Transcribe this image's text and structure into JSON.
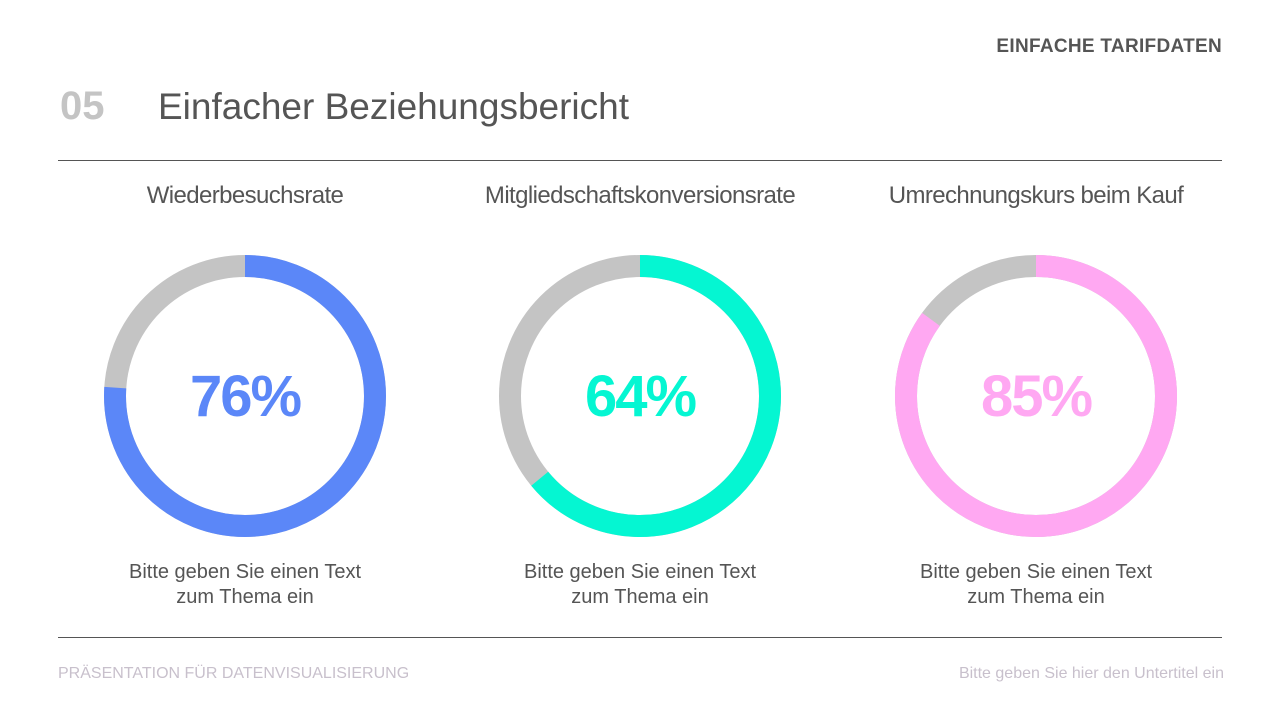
{
  "header": {
    "section_label": "EINFACHE TARIFDATEN",
    "number": "05",
    "title": "Einfacher Beziehungsbericht"
  },
  "chart_data": [
    {
      "type": "pie",
      "title": "Wiederbesuchsrate",
      "value": 76,
      "label": "76%",
      "color": "#5b87f8",
      "track_color": "#c4c4c4",
      "description": [
        "Bitte geben Sie einen Text",
        "zum Thema ein"
      ]
    },
    {
      "type": "pie",
      "title": "Mitgliedschaftskonversionsrate",
      "value": 64,
      "label": "64%",
      "color": "#05f6d2",
      "track_color": "#c4c4c4",
      "description": [
        "Bitte geben Sie einen Text",
        "zum Thema ein"
      ]
    },
    {
      "type": "pie",
      "title": "Umrechnungskurs beim Kauf",
      "value": 85,
      "label": "85%",
      "color": "#ffa8f2",
      "track_color": "#c4c4c4",
      "description": [
        "Bitte geben Sie einen Text",
        "zum Thema ein"
      ]
    }
  ],
  "footer": {
    "left": "PRÄSENTATION FÜR DATENVISUALISIERUNG",
    "right": "Bitte geben Sie hier den Untertitel ein"
  }
}
